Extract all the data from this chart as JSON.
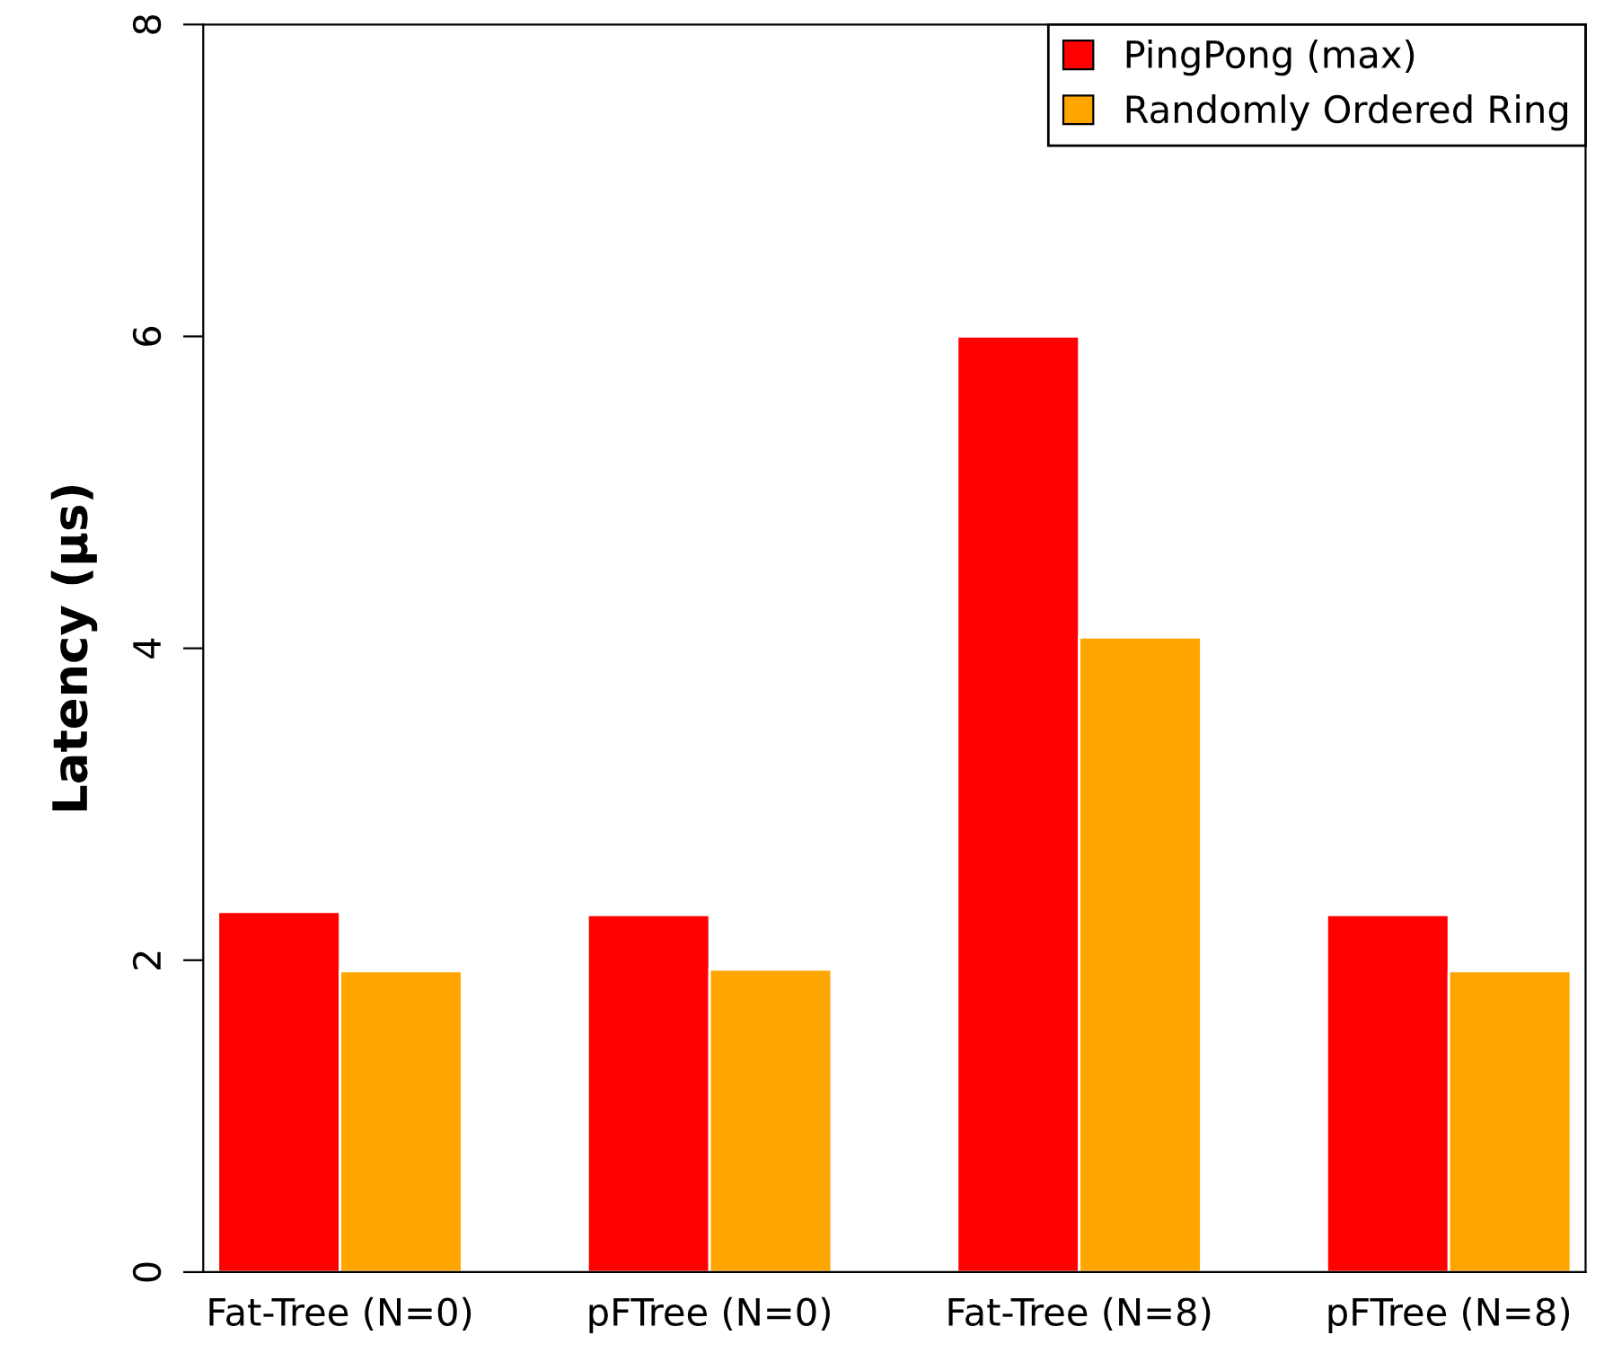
{
  "chart_data": {
    "type": "bar",
    "ylabel": "Latency (μs)",
    "categories": [
      "Fat-Tree (N=0)",
      "pFTree (N=0)",
      "Fat-Tree (N=8)",
      "pFTree (N=8)"
    ],
    "series": [
      {
        "name": "PingPong (max)",
        "color": "#ff0000",
        "values": [
          2.31,
          2.29,
          6.0,
          2.29
        ]
      },
      {
        "name": "Randomly Ordered Ring",
        "color": "#ffa500",
        "values": [
          1.93,
          1.94,
          4.07,
          1.93
        ]
      }
    ],
    "ylim": [
      0,
      8
    ],
    "yticks": [
      0,
      2,
      4,
      6,
      8
    ],
    "grid": false,
    "legend": "top right"
  }
}
